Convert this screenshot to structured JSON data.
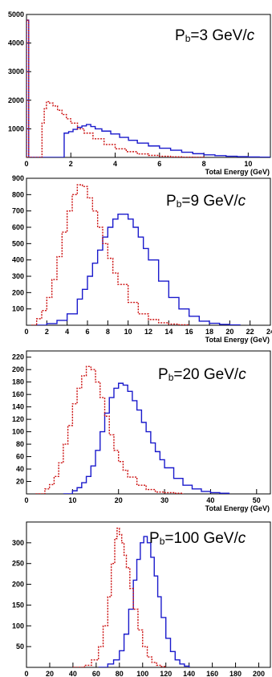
{
  "colors": {
    "blue": "#1a1acc",
    "red": "#cc1111",
    "axis": "#000000"
  },
  "chart_data": [
    {
      "type": "histogram",
      "annotation": {
        "main": "P",
        "sub": "b",
        "rest": "=3 GeV/",
        "italic": "c"
      },
      "xlabel": "Total Energy (GeV)",
      "ylabel": "",
      "xlim": [
        0,
        11
      ],
      "ylim": [
        0,
        5000
      ],
      "xticks": [
        0,
        2,
        4,
        6,
        8,
        10
      ],
      "yticks": [
        1000,
        2000,
        3000,
        4000,
        5000
      ],
      "series": [
        {
          "color": "blue",
          "style": "solid",
          "x": [
            0,
            0.05,
            0.1,
            1.7,
            1.9,
            2.1,
            2.3,
            2.5,
            2.7,
            2.9,
            3.1,
            3.4,
            3.8,
            4.2,
            4.6,
            5.0,
            5.5,
            6.0,
            6.5,
            7.0,
            7.5,
            8.0,
            8.5,
            9.0,
            9.5,
            10.0,
            10.5,
            11.0
          ],
          "y": [
            4800,
            4800,
            0,
            850,
            900,
            980,
            1050,
            1100,
            1150,
            1080,
            1000,
            920,
            820,
            700,
            600,
            500,
            400,
            320,
            250,
            180,
            130,
            90,
            60,
            40,
            25,
            15,
            8,
            0
          ]
        },
        {
          "color": "red",
          "style": "dashed",
          "x": [
            0,
            0.05,
            0.1,
            0.7,
            0.8,
            0.9,
            1.0,
            1.2,
            1.4,
            1.6,
            1.8,
            2.0,
            2.3,
            2.6,
            3.0,
            3.5,
            4.0,
            4.5,
            5.0,
            5.5,
            6.0,
            6.5,
            7.0,
            7.5,
            8.0
          ],
          "y": [
            4800,
            4800,
            0,
            1200,
            1700,
            1950,
            1900,
            1800,
            1650,
            1500,
            1350,
            1200,
            1000,
            850,
            650,
            450,
            300,
            200,
            120,
            70,
            40,
            20,
            10,
            5,
            0
          ]
        }
      ]
    },
    {
      "type": "histogram",
      "annotation": {
        "main": "P",
        "sub": "b",
        "rest": "=9 GeV/",
        "italic": "c"
      },
      "xlabel": "Total Energy (GeV)",
      "ylabel": "",
      "xlim": [
        0,
        24
      ],
      "ylim": [
        0,
        900
      ],
      "xticks": [
        0,
        2,
        4,
        6,
        8,
        10,
        12,
        14,
        16,
        18,
        20,
        22,
        24
      ],
      "yticks": [
        100,
        200,
        300,
        400,
        500,
        600,
        700,
        800,
        900
      ],
      "series": [
        {
          "color": "blue",
          "style": "solid",
          "x": [
            1,
            2,
            3,
            4,
            5,
            5.5,
            6,
            6.5,
            7,
            7.5,
            8,
            8.5,
            9,
            9.5,
            10,
            10.5,
            11,
            11.5,
            12,
            13,
            14,
            15,
            16,
            17,
            18,
            19,
            20,
            21
          ],
          "y": [
            0,
            10,
            30,
            70,
            160,
            220,
            300,
            380,
            460,
            540,
            600,
            650,
            680,
            680,
            650,
            600,
            540,
            470,
            400,
            270,
            170,
            100,
            55,
            25,
            12,
            5,
            2,
            0
          ]
        },
        {
          "color": "red",
          "style": "dashed",
          "x": [
            0.5,
            1,
            1.5,
            2,
            2.5,
            3,
            3.5,
            4,
            4.5,
            5,
            5.5,
            6,
            6.5,
            7,
            7.5,
            8,
            8.5,
            9,
            10,
            11,
            12,
            13,
            14,
            15,
            16
          ],
          "y": [
            0,
            40,
            90,
            170,
            280,
            420,
            570,
            700,
            800,
            860,
            850,
            780,
            700,
            600,
            500,
            410,
            320,
            250,
            140,
            70,
            35,
            15,
            7,
            3,
            0
          ]
        }
      ]
    },
    {
      "type": "histogram",
      "annotation": {
        "main": "P",
        "sub": "b",
        "rest": "=20 GeV/",
        "italic": "c"
      },
      "xlabel": "Total Energy (GeV)",
      "ylabel": "",
      "xlim": [
        0,
        53
      ],
      "ylim": [
        0,
        230
      ],
      "xticks": [
        0,
        10,
        20,
        30,
        40,
        50
      ],
      "yticks": [
        20,
        40,
        60,
        80,
        100,
        120,
        140,
        160,
        180,
        200,
        220
      ],
      "series": [
        {
          "color": "blue",
          "style": "solid",
          "x": [
            8,
            10,
            11,
            12,
            13,
            14,
            15,
            16,
            17,
            18,
            19,
            20,
            21,
            22,
            23,
            24,
            25,
            26,
            27,
            28,
            29,
            30,
            32,
            34,
            36,
            38,
            40,
            42,
            44
          ],
          "y": [
            0,
            5,
            10,
            18,
            28,
            45,
            70,
            100,
            130,
            155,
            170,
            178,
            175,
            165,
            150,
            135,
            115,
            100,
            82,
            68,
            55,
            42,
            25,
            14,
            8,
            4,
            2,
            1,
            0
          ]
        },
        {
          "color": "red",
          "style": "dashed",
          "x": [
            2,
            4,
            5,
            6,
            7,
            8,
            9,
            10,
            11,
            12,
            13,
            14,
            15,
            16,
            17,
            18,
            19,
            20,
            21,
            22,
            24,
            26,
            28,
            30,
            32,
            34
          ],
          "y": [
            0,
            8,
            15,
            28,
            50,
            80,
            110,
            145,
            170,
            190,
            205,
            200,
            180,
            155,
            125,
            95,
            70,
            52,
            38,
            27,
            14,
            7,
            3,
            2,
            1,
            0
          ]
        }
      ]
    },
    {
      "type": "histogram",
      "annotation": {
        "main": "P",
        "sub": "b",
        "rest": "=100 GeV/",
        "italic": "c"
      },
      "xlabel": "Total Energy (GeV)",
      "ylabel": "",
      "xlim": [
        0,
        210
      ],
      "ylim": [
        0,
        350
      ],
      "xticks": [
        0,
        20,
        40,
        60,
        80,
        100,
        120,
        140,
        160,
        180,
        200
      ],
      "yticks": [
        50,
        100,
        150,
        200,
        250,
        300
      ],
      "series": [
        {
          "color": "blue",
          "style": "solid",
          "x": [
            62,
            70,
            75,
            80,
            84,
            88,
            92,
            95,
            98,
            101,
            104,
            107,
            110,
            113,
            116,
            120,
            124,
            128,
            132,
            136,
            140
          ],
          "y": [
            0,
            8,
            18,
            40,
            80,
            140,
            210,
            260,
            300,
            315,
            300,
            265,
            220,
            170,
            120,
            70,
            38,
            18,
            8,
            3,
            0
          ]
        },
        {
          "color": "red",
          "style": "dashed",
          "x": [
            40,
            50,
            56,
            62,
            66,
            70,
            73,
            76,
            78,
            80,
            82,
            84,
            86,
            89,
            92,
            96,
            100,
            104,
            108,
            112,
            116,
            120
          ],
          "y": [
            0,
            5,
            18,
            50,
            100,
            170,
            250,
            310,
            335,
            320,
            300,
            270,
            240,
            190,
            140,
            90,
            50,
            25,
            12,
            5,
            2,
            0
          ]
        }
      ]
    }
  ]
}
